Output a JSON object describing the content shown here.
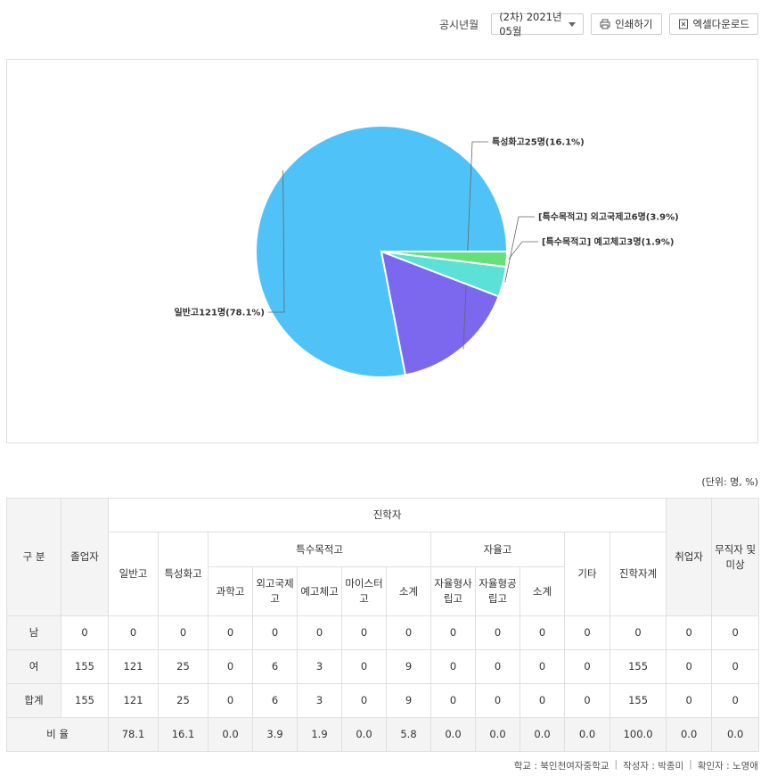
{
  "toolbar": {
    "period_label": "공시년월",
    "period_value": "(2차) 2021년 05월",
    "print_label": "인쇄하기",
    "excel_label": "엑셀다운로드"
  },
  "chart_data": {
    "type": "pie",
    "slices": [
      {
        "label": "일반고121명(78.1%)",
        "name": "일반고",
        "value": 121,
        "percent": 78.1,
        "color": "#4fc3f7"
      },
      {
        "label": "특성화고25명(16.1%)",
        "name": "특성화고",
        "value": 25,
        "percent": 16.1,
        "color": "#7b68ee"
      },
      {
        "label": "[특수목적고] 외고국제고6명(3.9%)",
        "name": "외고국제고",
        "value": 6,
        "percent": 3.9,
        "color": "#5ce1d6"
      },
      {
        "label": "[특수목적고] 예고체고3명(1.9%)",
        "name": "예고체고",
        "value": 3,
        "percent": 1.9,
        "color": "#66e07a"
      }
    ]
  },
  "unit_text": "(단위: 명, %)",
  "table": {
    "h_gubun": "구 분",
    "h_graduates": "졸업자",
    "h_advance": "진학자",
    "h_employed": "취업자",
    "h_unemployed": "무직자 및 미상",
    "h_general": "일반고",
    "h_vocational": "특성화고",
    "h_special": "특수목적고",
    "h_autonomous": "자율고",
    "h_other": "기타",
    "h_advance_total": "진학자계",
    "h_science": "과학고",
    "h_foreign": "외고국제고",
    "h_arts": "예고체고",
    "h_meister": "마이스터고",
    "h_subtotal1": "소계",
    "h_auto_private": "자율형사립고",
    "h_auto_public": "자율형공립고",
    "h_subtotal2": "소계",
    "rows": [
      {
        "label": "남",
        "cells": [
          "0",
          "0",
          "0",
          "0",
          "0",
          "0",
          "0",
          "0",
          "0",
          "0",
          "0",
          "0",
          "0",
          "0",
          "0"
        ]
      },
      {
        "label": "여",
        "cells": [
          "155",
          "121",
          "25",
          "0",
          "6",
          "3",
          "0",
          "9",
          "0",
          "0",
          "0",
          "0",
          "155",
          "0",
          "0"
        ]
      },
      {
        "label": "합계",
        "cells": [
          "155",
          "121",
          "25",
          "0",
          "6",
          "3",
          "0",
          "9",
          "0",
          "0",
          "0",
          "0",
          "155",
          "0",
          "0"
        ]
      }
    ],
    "ratio": {
      "label": "비 율",
      "cells": [
        "78.1",
        "16.1",
        "0.0",
        "3.9",
        "1.9",
        "0.0",
        "5.8",
        "0.0",
        "0.0",
        "0.0",
        "0.0",
        "100.0",
        "0.0",
        "0.0"
      ]
    }
  },
  "footer": {
    "school": "학교 : 북인천여자중학교",
    "author": "작성자 : 박종미",
    "confirm": "확인자 : 노영애"
  }
}
